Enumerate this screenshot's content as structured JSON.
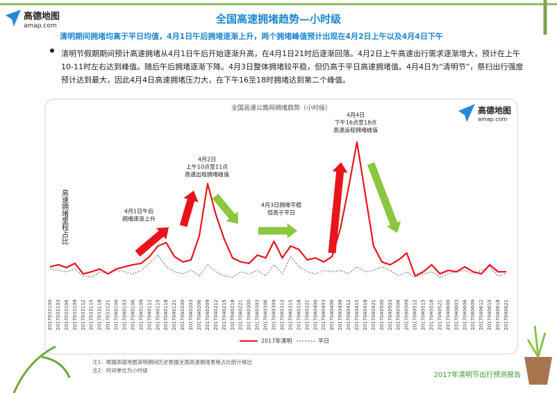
{
  "logo": {
    "name": "高德地图",
    "url": "amap.com"
  },
  "title": "全国高速拥堵趋势—小时级",
  "subtitle": "清明期间拥堵均高于平日均值，4月1日午后拥堵逐渐上升，两个拥堵峰值预计出现在4月2日上午以及4月4日下午",
  "bullet": "清明节假期期间预计高速拥堵从4月1日午后开始逐渐升高，在4月1日21时后逐渐回落。4月2日上午高速出行需求逐渐增大，预计在上午10-11时左右达到峰值。随后午后拥堵逐渐下降。4月3日整体拥堵较平稳，但仍高于平日高速拥堵值。4月4日为“清明节”，祭扫出行强度预计达到最大，因此4月4日高速拥堵压力大，在下午16至18时拥堵达到第二个峰值。",
  "chart_data": {
    "type": "line",
    "title": "全国高速公路网拥堵趋势（小时级）",
    "y_label": "高速拥堵里程占比",
    "categories": [
      "2017033100",
      "2017033103",
      "2017033106",
      "2017033109",
      "2017033112",
      "2017033115",
      "2017033118",
      "2017033121",
      "2017040100",
      "2017040103",
      "2017040106",
      "2017040109",
      "2017040112",
      "2017040115",
      "2017040118",
      "2017040121",
      "2017040200",
      "2017040203",
      "2017040206",
      "2017040209",
      "2017040212",
      "2017040215",
      "2017040218",
      "2017040221",
      "2017040300",
      "2017040303",
      "2017040306",
      "2017040309",
      "2017040312",
      "2017040315",
      "2017040318",
      "2017040321",
      "2017040400",
      "2017040403",
      "2017040406",
      "2017040409",
      "2017040412",
      "2017040415",
      "2017040418",
      "2017040421",
      "2017040500",
      "2017040503",
      "2017040506",
      "2017040509",
      "2017040512",
      "2017040515",
      "2017040518",
      "2017040521",
      "2017040600",
      "2017040603",
      "2017040606",
      "2017040609",
      "2017040612",
      "2017040615",
      "2017040618",
      "2017040621"
    ],
    "series": [
      {
        "name": "2017年清明",
        "color": "#e8141b",
        "dashed": false,
        "values": [
          15.6,
          16.9,
          15.1,
          17.8,
          11.1,
          12.4,
          14.2,
          11.1,
          14.2,
          15.6,
          16.9,
          17.8,
          22.2,
          28.9,
          31.1,
          22.2,
          18.7,
          20,
          35.6,
          68.9,
          48.9,
          33.3,
          21.3,
          18.7,
          17.8,
          23.1,
          21.3,
          32,
          21.3,
          28.9,
          26.7,
          20,
          21.3,
          18.7,
          22.2,
          40,
          66.7,
          95.6,
          62.2,
          28.9,
          18.7,
          16.9,
          20,
          24.4,
          9.8,
          12.4,
          16.9,
          11.1,
          13.3,
          12.4,
          15.6,
          12.4,
          11.1,
          16.9,
          12.4,
          12.4
        ]
      },
      {
        "name": "平日",
        "color": "#a0a0a0",
        "dashed": true,
        "values": [
          14.2,
          13.3,
          12.4,
          14.2,
          9.8,
          8.9,
          12.4,
          11.1,
          13.3,
          12.4,
          11.1,
          13.3,
          17.8,
          23.1,
          15.6,
          12.4,
          11.1,
          13.3,
          9.8,
          16.9,
          12.4,
          9.8,
          8.9,
          12.4,
          11.1,
          13.3,
          9.8,
          16.9,
          11.1,
          22.2,
          15.6,
          12.4,
          11.1,
          13.3,
          12.4,
          13.3,
          11.1,
          15.6,
          12.4,
          13.3,
          15.6,
          13.3,
          9.8,
          12.4,
          8.9,
          11.1,
          12.4,
          8.9,
          11.1,
          12.4,
          13.3,
          11.1,
          13.3,
          15.6,
          9.8,
          11.1
        ]
      }
    ],
    "ylim": [
      0,
      100
    ],
    "annotations": [
      {
        "lines": [
          "4月1日午后",
          "拥堵逐渐上升"
        ]
      },
      {
        "lines": [
          "4月2日",
          "上午10点至11点",
          "高速出程拥堵峰值"
        ]
      },
      {
        "lines": [
          "4月3日拥堵平稳",
          "但高于平日"
        ]
      },
      {
        "lines": [
          "4月4日",
          "下午16点至18点",
          "高速返程拥堵峰值"
        ]
      }
    ]
  },
  "notes": [
    "注1：根据高德地图清明期间历史数据全国高速拥堵里程占比统计得出",
    "注2：时间单位为小时级"
  ],
  "footer": "2017年清明节出行预测报告"
}
